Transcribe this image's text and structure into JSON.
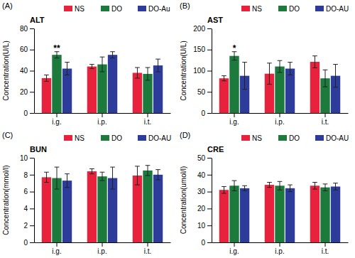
{
  "chart_data": [
    {
      "type": "bar",
      "label": "(A)",
      "title": "ALT",
      "y_label": "Concentration(U/L)",
      "categories": [
        "i.g.",
        "i.p.",
        "i.t."
      ],
      "series": [
        {
          "name": "NS",
          "color": "#e8213c",
          "values": [
            33,
            44,
            38
          ],
          "errors": [
            3,
            2,
            5
          ]
        },
        {
          "name": "DO",
          "color": "#1b7a3c",
          "values": [
            55,
            46,
            37
          ],
          "errors": [
            3,
            7,
            6
          ]
        },
        {
          "name": "DO-Au",
          "color": "#2d3c9b",
          "values": [
            42,
            55,
            45
          ],
          "errors": [
            6,
            3,
            6
          ]
        }
      ],
      "annotations": [
        {
          "text": "**",
          "category": "i.g.",
          "series": "DO"
        }
      ],
      "ylim": [
        0,
        80
      ],
      "yticks": [
        0,
        20,
        40,
        60,
        80
      ],
      "grid": false,
      "legend": "top"
    },
    {
      "type": "bar",
      "label": "(B)",
      "title": "AST",
      "y_label": "Concentration(U/L)",
      "categories": [
        "i.g.",
        "i.p.",
        "i.t."
      ],
      "series": [
        {
          "name": "NS",
          "color": "#e8213c",
          "values": [
            82,
            93,
            121
          ],
          "errors": [
            6,
            25,
            14
          ]
        },
        {
          "name": "DO",
          "color": "#1b7a3c",
          "values": [
            135,
            110,
            82
          ],
          "errors": [
            10,
            14,
            20
          ]
        },
        {
          "name": "DO-AU",
          "color": "#2d3c9b",
          "values": [
            88,
            105,
            88
          ],
          "errors": [
            32,
            15,
            27
          ]
        }
      ],
      "annotations": [
        {
          "text": "*",
          "category": "i.g.",
          "series": "DO"
        }
      ],
      "ylim": [
        0,
        200
      ],
      "yticks": [
        0,
        50,
        100,
        150,
        200
      ],
      "grid": false,
      "legend": "top"
    },
    {
      "type": "bar",
      "label": "(C)",
      "title": "BUN",
      "y_label": "Concentration(mmol/l)",
      "categories": [
        "i.g.",
        "i.p.",
        "i.t."
      ],
      "series": [
        {
          "name": "NS",
          "color": "#e8213c",
          "values": [
            7.7,
            8.4,
            7.9
          ],
          "errors": [
            0.6,
            0.3,
            1.1
          ]
        },
        {
          "name": "DO",
          "color": "#1b7a3c",
          "values": [
            7.6,
            7.8,
            8.5
          ],
          "errors": [
            1.3,
            0.5,
            0.6
          ]
        },
        {
          "name": "DO-AU",
          "color": "#2d3c9b",
          "values": [
            7.3,
            7.6,
            8.0
          ],
          "errors": [
            0.8,
            1.3,
            0.6
          ]
        }
      ],
      "ylim": [
        0,
        10
      ],
      "yticks": [
        0,
        2,
        4,
        6,
        8,
        10
      ],
      "grid": false,
      "legend": "top"
    },
    {
      "type": "bar",
      "label": "(D)",
      "title": "CRE",
      "y_label": "Concentration(umol/l)",
      "categories": [
        "i.g.",
        "i.p.",
        "i.t."
      ],
      "series": [
        {
          "name": "NS",
          "color": "#e8213c",
          "values": [
            31,
            34,
            33.5
          ],
          "errors": [
            2,
            1.5,
            2
          ]
        },
        {
          "name": "DO",
          "color": "#1b7a3c",
          "values": [
            33.5,
            33.5,
            32.5
          ],
          "errors": [
            3,
            2.5,
            2
          ]
        },
        {
          "name": "DO-AU",
          "color": "#2d3c9b",
          "values": [
            32,
            32,
            33
          ],
          "errors": [
            1.5,
            2,
            2
          ]
        }
      ],
      "ylim": [
        0,
        50
      ],
      "yticks": [
        0,
        10,
        20,
        30,
        40,
        50
      ],
      "grid": false,
      "legend": "top"
    }
  ]
}
